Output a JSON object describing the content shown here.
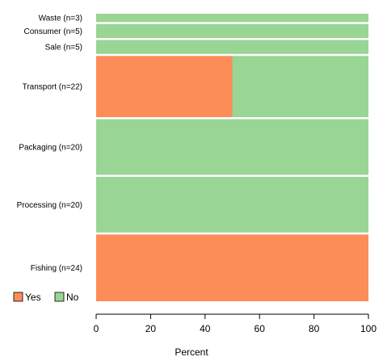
{
  "chart_data": {
    "type": "bar",
    "orientation": "horizontal",
    "stacked": true,
    "variable_width": true,
    "categories": [
      "Waste (n=3)",
      "Consumer (n=5)",
      "Sale (n=5)",
      "Transport (n=22)",
      "Packaging (n=20)",
      "Processing (n=20)",
      "Fishing (n=24)"
    ],
    "counts": [
      3,
      5,
      5,
      22,
      20,
      20,
      24
    ],
    "series": [
      {
        "name": "Yes",
        "color": "#fc8d59",
        "values": [
          0,
          0,
          0,
          50,
          0,
          0,
          100
        ]
      },
      {
        "name": "No",
        "color": "#99d594",
        "values": [
          100,
          100,
          100,
          50,
          100,
          100,
          0
        ]
      }
    ],
    "xlabel": "Percent",
    "xlim": [
      0,
      100
    ],
    "xticks": [
      0,
      20,
      40,
      60,
      80,
      100
    ],
    "legend_position": "bottom-left",
    "grid": false
  }
}
